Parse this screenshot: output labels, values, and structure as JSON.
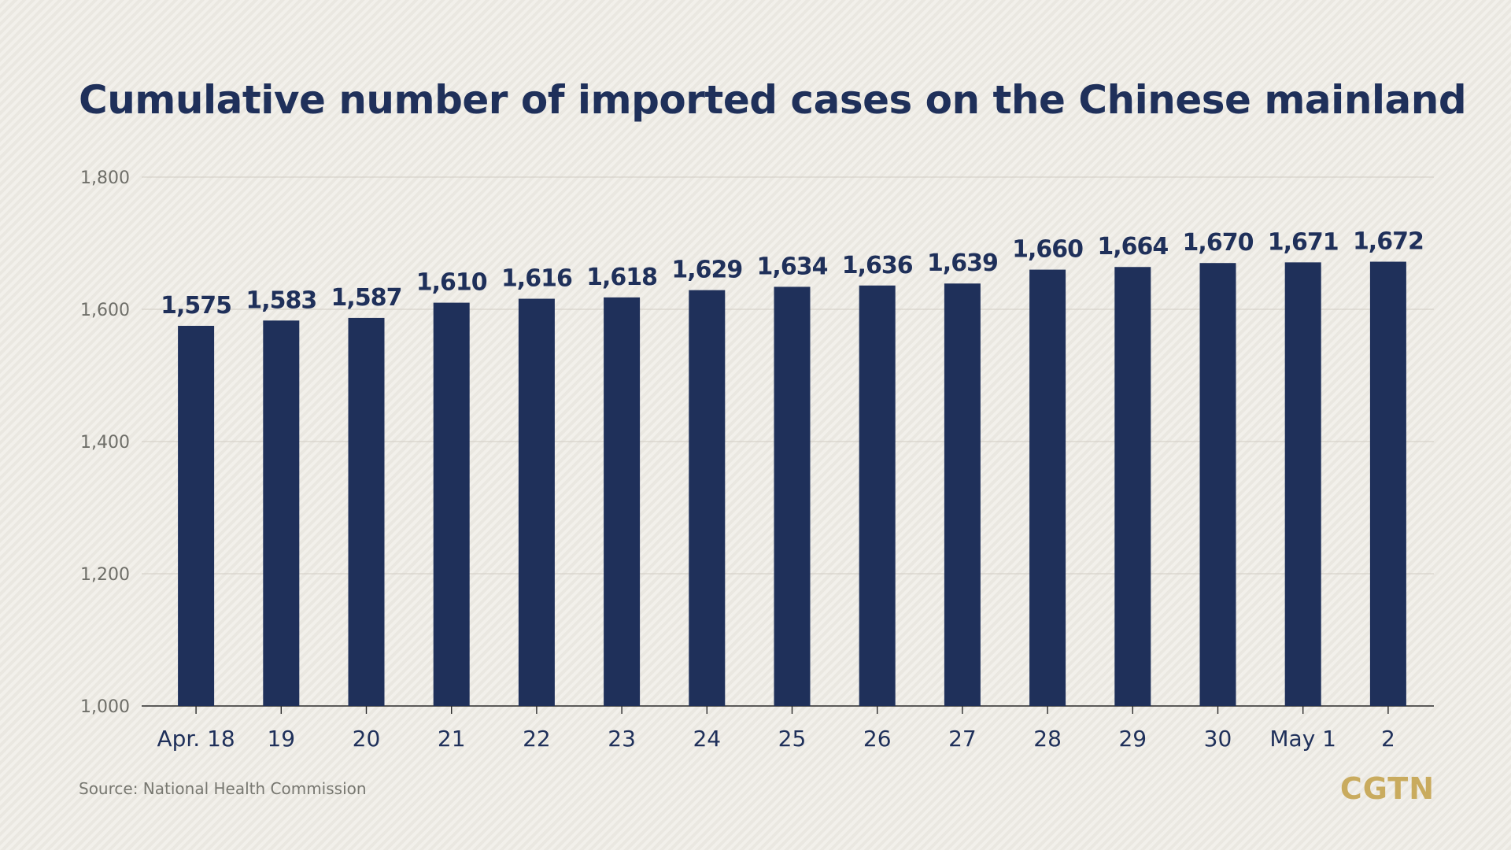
{
  "header": {
    "title": "Cumulative number of imported cases on the Chinese mainland"
  },
  "footer": {
    "source": "Source: National Health Commission",
    "logo": "CGTN"
  },
  "colors": {
    "bar": "#1f305a",
    "value_label": "#1f305a",
    "axis_text": "#6e6e68",
    "gridline": "#cfcbc2",
    "logo": "#c9ab5e"
  },
  "chart_data": {
    "type": "bar",
    "title": "Cumulative number of imported cases on the Chinese mainland",
    "xlabel": "",
    "ylabel": "",
    "categories": [
      "Apr. 18",
      "19",
      "20",
      "21",
      "22",
      "23",
      "24",
      "25",
      "26",
      "27",
      "28",
      "29",
      "30",
      "May 1",
      "2"
    ],
    "values": [
      1575,
      1583,
      1587,
      1610,
      1616,
      1618,
      1629,
      1634,
      1636,
      1639,
      1660,
      1664,
      1670,
      1671,
      1672
    ],
    "value_labels": [
      "1,575",
      "1,583",
      "1,587",
      "1,610",
      "1,616",
      "1,618",
      "1,629",
      "1,634",
      "1,636",
      "1,639",
      "1,660",
      "1,664",
      "1,670",
      "1,671",
      "1,672"
    ],
    "ylim": [
      1000,
      1800
    ],
    "yticks": [
      1000,
      1200,
      1400,
      1600,
      1800
    ],
    "ytick_labels": [
      "1,000",
      "1,200",
      "1,400",
      "1,600",
      "1,800"
    ],
    "grid": true,
    "legend": "none"
  }
}
